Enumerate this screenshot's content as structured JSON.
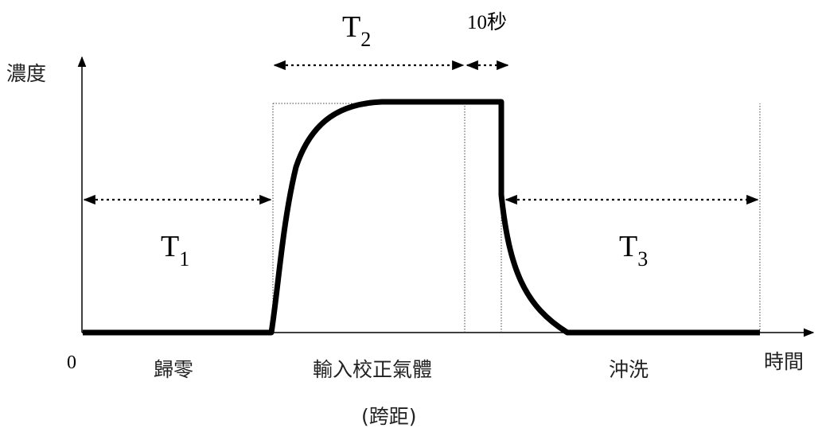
{
  "axes": {
    "y_label": "濃度",
    "x_label": "時間",
    "origin": "0"
  },
  "periods": {
    "t1": {
      "base": "T",
      "sub": "1"
    },
    "t2": {
      "base": "T",
      "sub": "2"
    },
    "t3": {
      "base": "T",
      "sub": "3"
    },
    "hold": "10秒"
  },
  "phases": {
    "zero": "歸零",
    "calibration": "輸入校正氣體",
    "span": "(跨距)",
    "purge": "沖洗"
  }
}
